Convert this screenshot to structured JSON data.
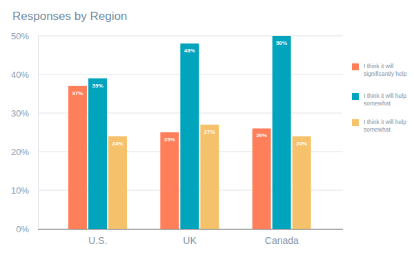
{
  "chart_data": {
    "type": "bar",
    "title": "Responses by Region",
    "categories": [
      "U.S.",
      "UK",
      "Canada"
    ],
    "series": [
      {
        "name": "I think it will significantly help",
        "color": "#ff7f5b",
        "values": [
          37,
          25,
          26
        ],
        "value_labels": [
          "37%",
          "25%",
          "26%"
        ]
      },
      {
        "name": "I think it will help somewhat",
        "color": "#00a4bd",
        "values": [
          39,
          48,
          50
        ],
        "value_labels": [
          "39%",
          "48%",
          "50%"
        ]
      },
      {
        "name": "I think it will help somewhat",
        "color": "#f5c26b",
        "values": [
          24,
          27,
          24
        ],
        "value_labels": [
          "24%",
          "27%",
          "24%"
        ]
      }
    ],
    "ylim": [
      0,
      50
    ],
    "yticks": [
      {
        "value": 0,
        "label": "0%"
      },
      {
        "value": 10,
        "label": "10%"
      },
      {
        "value": 20,
        "label": "20%"
      },
      {
        "value": 30,
        "label": "30%"
      },
      {
        "value": 40,
        "label": "40%"
      },
      {
        "value": 50,
        "label": "50%"
      }
    ],
    "grid": true,
    "legend": "right",
    "data_labels": true
  }
}
